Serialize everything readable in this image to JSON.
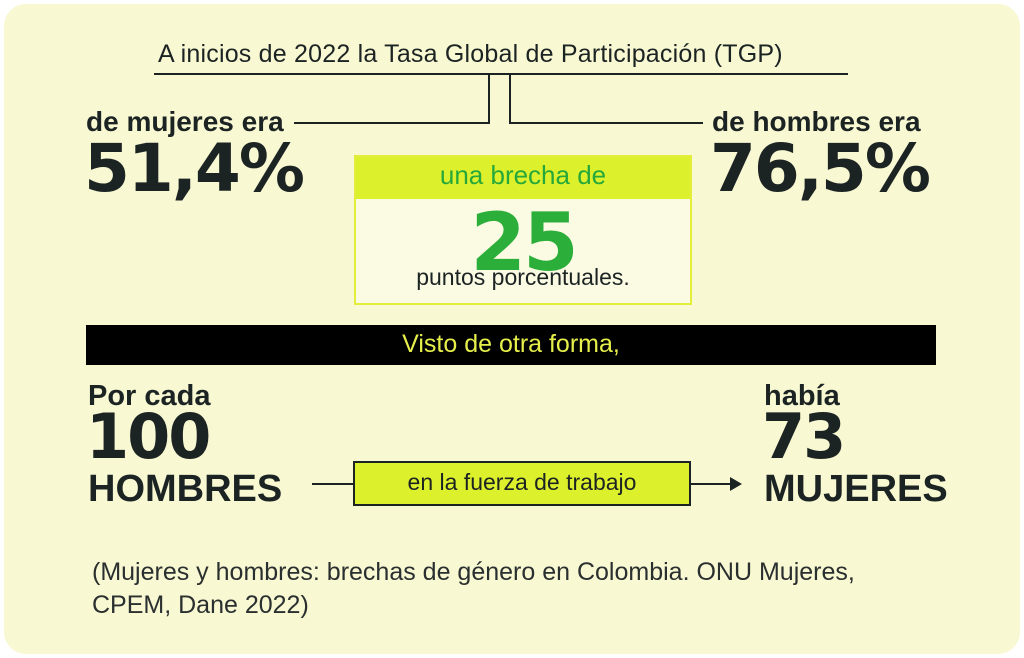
{
  "title": "A inicios de 2022 la Tasa Global de Participación (TGP)",
  "women": {
    "label": "de mujeres era",
    "value": "51,4%"
  },
  "men": {
    "label": "de hombres era",
    "value": "76,5%"
  },
  "gap": {
    "intro": "una brecha de",
    "value": "25",
    "unit": "puntos porcentuales."
  },
  "banner": "Visto de otra forma,",
  "ratio": {
    "left_label": "Por cada",
    "left_value": "100",
    "left_noun": "HOMBRES",
    "connector": "en la fuerza de trabajo",
    "right_label": "había",
    "right_value": "73",
    "right_noun": "MUJERES"
  },
  "source_line1": "(Mujeres y hombres: brechas de género en Colombia. ONU Mujeres,",
  "source_line2": "CPEM, Dane 2022)",
  "colors": {
    "background": "#f8f8d2",
    "accent_yellow": "#ddf02c",
    "accent_green": "#2cae3a",
    "dark": "#1c2323",
    "banner": "#000000"
  }
}
